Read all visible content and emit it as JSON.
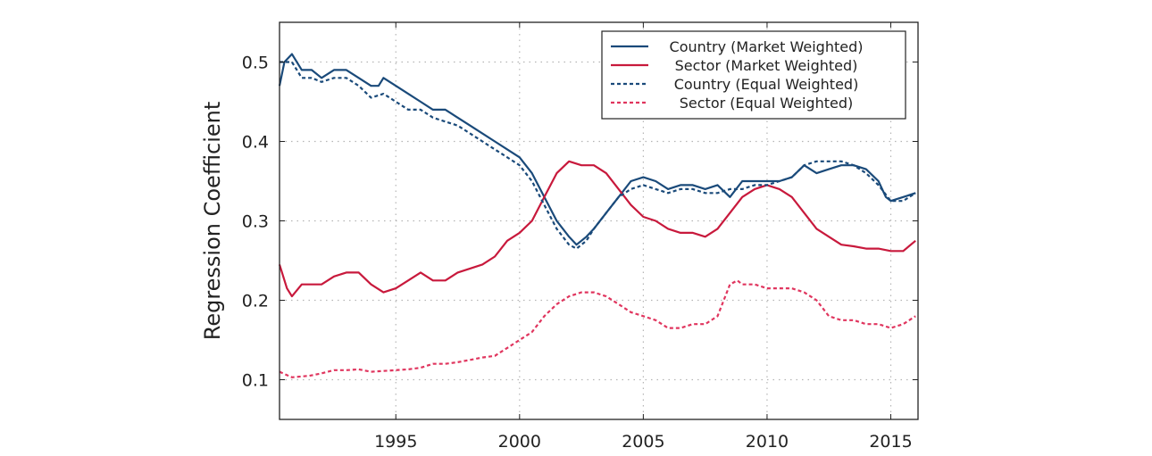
{
  "chart_data": {
    "type": "line",
    "title": "",
    "xlabel": "",
    "ylabel": "Regression Coefficient",
    "xlim": [
      1990.3,
      2016.1
    ],
    "ylim": [
      0.05,
      0.55
    ],
    "xticks": [
      1995,
      2000,
      2005,
      2010,
      2015
    ],
    "yticks": [
      0.1,
      0.2,
      0.3,
      0.4,
      0.5
    ],
    "grid": true,
    "legend_position": "top-right",
    "series": [
      {
        "name": "Country (Market Weighted)",
        "color": "#1a4a7a",
        "dash": "solid",
        "points": [
          [
            1990.3,
            0.47
          ],
          [
            1990.5,
            0.5
          ],
          [
            1990.8,
            0.51
          ],
          [
            1991.2,
            0.49
          ],
          [
            1991.6,
            0.49
          ],
          [
            1992,
            0.48
          ],
          [
            1992.5,
            0.49
          ],
          [
            1993,
            0.49
          ],
          [
            1993.5,
            0.48
          ],
          [
            1994,
            0.47
          ],
          [
            1994.3,
            0.47
          ],
          [
            1994.5,
            0.48
          ],
          [
            1995,
            0.47
          ],
          [
            1995.5,
            0.46
          ],
          [
            1996,
            0.45
          ],
          [
            1996.5,
            0.44
          ],
          [
            1997,
            0.44
          ],
          [
            1997.5,
            0.43
          ],
          [
            1998,
            0.42
          ],
          [
            1998.5,
            0.41
          ],
          [
            1999,
            0.4
          ],
          [
            1999.5,
            0.39
          ],
          [
            2000,
            0.38
          ],
          [
            2000.5,
            0.36
          ],
          [
            2001,
            0.33
          ],
          [
            2001.5,
            0.3
          ],
          [
            2002,
            0.28
          ],
          [
            2002.3,
            0.27
          ],
          [
            2002.7,
            0.28
          ],
          [
            2003,
            0.29
          ],
          [
            2003.5,
            0.31
          ],
          [
            2004,
            0.33
          ],
          [
            2004.5,
            0.35
          ],
          [
            2005,
            0.355
          ],
          [
            2005.5,
            0.35
          ],
          [
            2006,
            0.34
          ],
          [
            2006.5,
            0.345
          ],
          [
            2007,
            0.345
          ],
          [
            2007.5,
            0.34
          ],
          [
            2008,
            0.345
          ],
          [
            2008.5,
            0.33
          ],
          [
            2009,
            0.35
          ],
          [
            2009.5,
            0.35
          ],
          [
            2010,
            0.35
          ],
          [
            2010.5,
            0.35
          ],
          [
            2011,
            0.355
          ],
          [
            2011.5,
            0.37
          ],
          [
            2012,
            0.36
          ],
          [
            2012.5,
            0.365
          ],
          [
            2013,
            0.37
          ],
          [
            2013.5,
            0.37
          ],
          [
            2014,
            0.365
          ],
          [
            2014.5,
            0.35
          ],
          [
            2014.8,
            0.33
          ],
          [
            2015,
            0.325
          ],
          [
            2015.5,
            0.33
          ],
          [
            2016,
            0.335
          ]
        ]
      },
      {
        "name": "Sector (Market Weighted)",
        "color": "#c8193c",
        "dash": "solid",
        "points": [
          [
            1990.3,
            0.245
          ],
          [
            1990.6,
            0.215
          ],
          [
            1990.8,
            0.205
          ],
          [
            1991.2,
            0.22
          ],
          [
            1991.6,
            0.22
          ],
          [
            1992,
            0.22
          ],
          [
            1992.5,
            0.23
          ],
          [
            1993,
            0.235
          ],
          [
            1993.5,
            0.235
          ],
          [
            1994,
            0.22
          ],
          [
            1994.5,
            0.21
          ],
          [
            1995,
            0.215
          ],
          [
            1995.5,
            0.225
          ],
          [
            1996,
            0.235
          ],
          [
            1996.5,
            0.225
          ],
          [
            1997,
            0.225
          ],
          [
            1997.5,
            0.235
          ],
          [
            1998,
            0.24
          ],
          [
            1998.5,
            0.245
          ],
          [
            1999,
            0.255
          ],
          [
            1999.5,
            0.275
          ],
          [
            2000,
            0.285
          ],
          [
            2000.5,
            0.3
          ],
          [
            2001,
            0.33
          ],
          [
            2001.5,
            0.36
          ],
          [
            2002,
            0.375
          ],
          [
            2002.5,
            0.37
          ],
          [
            2003,
            0.37
          ],
          [
            2003.5,
            0.36
          ],
          [
            2004,
            0.34
          ],
          [
            2004.5,
            0.32
          ],
          [
            2005,
            0.305
          ],
          [
            2005.5,
            0.3
          ],
          [
            2006,
            0.29
          ],
          [
            2006.5,
            0.285
          ],
          [
            2007,
            0.285
          ],
          [
            2007.5,
            0.28
          ],
          [
            2008,
            0.29
          ],
          [
            2008.5,
            0.31
          ],
          [
            2009,
            0.33
          ],
          [
            2009.5,
            0.34
          ],
          [
            2010,
            0.345
          ],
          [
            2010.5,
            0.34
          ],
          [
            2011,
            0.33
          ],
          [
            2011.5,
            0.31
          ],
          [
            2012,
            0.29
          ],
          [
            2012.5,
            0.28
          ],
          [
            2013,
            0.27
          ],
          [
            2013.5,
            0.268
          ],
          [
            2014,
            0.265
          ],
          [
            2014.5,
            0.265
          ],
          [
            2015,
            0.262
          ],
          [
            2015.5,
            0.262
          ],
          [
            2016,
            0.275
          ]
        ]
      },
      {
        "name": "Country (Equal Weighted)",
        "color": "#1a4a7a",
        "dash": "dashed",
        "points": [
          [
            1990.3,
            0.5
          ],
          [
            1990.8,
            0.5
          ],
          [
            1991.2,
            0.48
          ],
          [
            1991.6,
            0.48
          ],
          [
            1992,
            0.475
          ],
          [
            1992.5,
            0.48
          ],
          [
            1993,
            0.48
          ],
          [
            1993.5,
            0.47
          ],
          [
            1994,
            0.455
          ],
          [
            1994.5,
            0.46
          ],
          [
            1995,
            0.45
          ],
          [
            1995.5,
            0.44
          ],
          [
            1996,
            0.44
          ],
          [
            1996.5,
            0.43
          ],
          [
            1997,
            0.425
          ],
          [
            1997.5,
            0.42
          ],
          [
            1998,
            0.41
          ],
          [
            1998.5,
            0.4
          ],
          [
            1999,
            0.39
          ],
          [
            1999.5,
            0.38
          ],
          [
            2000,
            0.37
          ],
          [
            2000.5,
            0.35
          ],
          [
            2001,
            0.32
          ],
          [
            2001.5,
            0.29
          ],
          [
            2002,
            0.27
          ],
          [
            2002.3,
            0.265
          ],
          [
            2002.7,
            0.275
          ],
          [
            2003,
            0.29
          ],
          [
            2003.5,
            0.31
          ],
          [
            2004,
            0.33
          ],
          [
            2004.5,
            0.34
          ],
          [
            2005,
            0.345
          ],
          [
            2005.5,
            0.34
          ],
          [
            2006,
            0.335
          ],
          [
            2006.5,
            0.34
          ],
          [
            2007,
            0.34
          ],
          [
            2007.5,
            0.335
          ],
          [
            2008,
            0.335
          ],
          [
            2008.5,
            0.34
          ],
          [
            2009,
            0.34
          ],
          [
            2009.5,
            0.345
          ],
          [
            2010,
            0.345
          ],
          [
            2010.5,
            0.35
          ],
          [
            2011,
            0.355
          ],
          [
            2011.5,
            0.37
          ],
          [
            2012,
            0.375
          ],
          [
            2012.5,
            0.375
          ],
          [
            2013,
            0.375
          ],
          [
            2013.5,
            0.37
          ],
          [
            2014,
            0.36
          ],
          [
            2014.5,
            0.345
          ],
          [
            2015,
            0.325
          ],
          [
            2015.5,
            0.325
          ],
          [
            2016,
            0.335
          ]
        ]
      },
      {
        "name": "Sector (Equal Weighted)",
        "color": "#e0355e",
        "dash": "dashed",
        "points": [
          [
            1990.3,
            0.11
          ],
          [
            1990.8,
            0.103
          ],
          [
            1991.5,
            0.105
          ],
          [
            1992,
            0.108
          ],
          [
            1992.5,
            0.112
          ],
          [
            1993,
            0.112
          ],
          [
            1993.5,
            0.113
          ],
          [
            1994,
            0.11
          ],
          [
            1994.5,
            0.111
          ],
          [
            1995,
            0.112
          ],
          [
            1995.5,
            0.113
          ],
          [
            1996,
            0.115
          ],
          [
            1996.5,
            0.12
          ],
          [
            1997,
            0.12
          ],
          [
            1997.5,
            0.122
          ],
          [
            1998,
            0.125
          ],
          [
            1998.5,
            0.128
          ],
          [
            1999,
            0.13
          ],
          [
            1999.5,
            0.14
          ],
          [
            2000,
            0.15
          ],
          [
            2000.5,
            0.16
          ],
          [
            2001,
            0.18
          ],
          [
            2001.5,
            0.195
          ],
          [
            2002,
            0.205
          ],
          [
            2002.5,
            0.21
          ],
          [
            2003,
            0.21
          ],
          [
            2003.5,
            0.205
          ],
          [
            2004,
            0.195
          ],
          [
            2004.5,
            0.185
          ],
          [
            2005,
            0.18
          ],
          [
            2005.5,
            0.175
          ],
          [
            2006,
            0.165
          ],
          [
            2006.5,
            0.165
          ],
          [
            2007,
            0.17
          ],
          [
            2007.5,
            0.17
          ],
          [
            2008,
            0.18
          ],
          [
            2008.5,
            0.22
          ],
          [
            2008.8,
            0.225
          ],
          [
            2009,
            0.22
          ],
          [
            2009.5,
            0.22
          ],
          [
            2010,
            0.215
          ],
          [
            2010.5,
            0.215
          ],
          [
            2011,
            0.215
          ],
          [
            2011.5,
            0.21
          ],
          [
            2012,
            0.2
          ],
          [
            2012.5,
            0.18
          ],
          [
            2013,
            0.175
          ],
          [
            2013.5,
            0.175
          ],
          [
            2014,
            0.17
          ],
          [
            2014.5,
            0.17
          ],
          [
            2015,
            0.165
          ],
          [
            2015.5,
            0.17
          ],
          [
            2016,
            0.18
          ]
        ]
      }
    ]
  }
}
